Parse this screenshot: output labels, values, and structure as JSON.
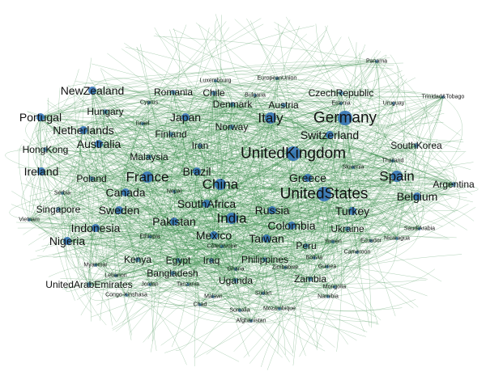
{
  "colors": {
    "background": "#ffffff",
    "edge": "#2e8540",
    "node": "#2d6fb6",
    "label": "#111111"
  },
  "nodes": [
    {
      "id": "united-kingdom",
      "label": "UnitedKingdom",
      "weight": 5
    },
    {
      "id": "united-states",
      "label": "UnitedStates",
      "weight": 5
    },
    {
      "id": "germany",
      "label": "Germany",
      "weight": 5
    },
    {
      "id": "china",
      "label": "China",
      "weight": 4
    },
    {
      "id": "india",
      "label": "India",
      "weight": 4
    },
    {
      "id": "italy",
      "label": "Italy",
      "weight": 4
    },
    {
      "id": "france",
      "label": "France",
      "weight": 4
    },
    {
      "id": "spain",
      "label": "Spain",
      "weight": 4
    },
    {
      "id": "canada",
      "label": "Canada",
      "weight": 3
    },
    {
      "id": "australia",
      "label": "Australia",
      "weight": 3
    },
    {
      "id": "south-africa",
      "label": "SouthAfrica",
      "weight": 3
    },
    {
      "id": "brazil",
      "label": "Brazil",
      "weight": 3
    },
    {
      "id": "japan",
      "label": "Japan",
      "weight": 3
    },
    {
      "id": "sweden",
      "label": "Sweden",
      "weight": 3
    },
    {
      "id": "netherlands",
      "label": "Netherlands",
      "weight": 3
    },
    {
      "id": "switzerland",
      "label": "Switzerland",
      "weight": 3
    },
    {
      "id": "ireland",
      "label": "Ireland",
      "weight": 3
    },
    {
      "id": "pakistan",
      "label": "Pakistan",
      "weight": 3
    },
    {
      "id": "mexico",
      "label": "Mexico",
      "weight": 3
    },
    {
      "id": "greece",
      "label": "Greece",
      "weight": 3
    },
    {
      "id": "turkey",
      "label": "Turkey",
      "weight": 3
    },
    {
      "id": "russia",
      "label": "Russia",
      "weight": 3
    },
    {
      "id": "colombia",
      "label": "Colombia",
      "weight": 3
    },
    {
      "id": "taiwan",
      "label": "Taiwan",
      "weight": 3
    },
    {
      "id": "nigeria",
      "label": "Nigeria",
      "weight": 3
    },
    {
      "id": "indonesia",
      "label": "Indonesia",
      "weight": 3
    },
    {
      "id": "new-zealand",
      "label": "NewZealand",
      "weight": 3
    },
    {
      "id": "portugal",
      "label": "Portugal",
      "weight": 3
    },
    {
      "id": "belgium",
      "label": "Belgium",
      "weight": 3
    },
    {
      "id": "south-korea",
      "label": "SouthKorea",
      "weight": 2
    },
    {
      "id": "argentina",
      "label": "Argentina",
      "weight": 2
    },
    {
      "id": "poland",
      "label": "Poland",
      "weight": 2
    },
    {
      "id": "egypt",
      "label": "Egypt",
      "weight": 2
    },
    {
      "id": "kenya",
      "label": "Kenya",
      "weight": 2
    },
    {
      "id": "iraq",
      "label": "Iraq",
      "weight": 2
    },
    {
      "id": "bangladesh",
      "label": "Bangladesh",
      "weight": 2
    },
    {
      "id": "philippines",
      "label": "Philippines",
      "weight": 2
    },
    {
      "id": "ukraine",
      "label": "Ukraine",
      "weight": 2
    },
    {
      "id": "peru",
      "label": "Peru",
      "weight": 2
    },
    {
      "id": "uganda",
      "label": "Uganda",
      "weight": 2
    },
    {
      "id": "zambia",
      "label": "Zambia",
      "weight": 2
    },
    {
      "id": "malaysia",
      "label": "Malaysia",
      "weight": 2
    },
    {
      "id": "finland",
      "label": "Finland",
      "weight": 2
    },
    {
      "id": "iran",
      "label": "Iran",
      "weight": 2
    },
    {
      "id": "norway",
      "label": "Norway",
      "weight": 2
    },
    {
      "id": "denmark",
      "label": "Denmark",
      "weight": 2
    },
    {
      "id": "austria",
      "label": "Austria",
      "weight": 2
    },
    {
      "id": "romania",
      "label": "Romania",
      "weight": 2
    },
    {
      "id": "czech-republic",
      "label": "CzechRepublic",
      "weight": 2
    },
    {
      "id": "hungary",
      "label": "Hungary",
      "weight": 2
    },
    {
      "id": "singapore",
      "label": "Singapore",
      "weight": 2
    },
    {
      "id": "hong-kong",
      "label": "HongKong",
      "weight": 2
    },
    {
      "id": "united-arab-emirates",
      "label": "UnitedArabEmirates",
      "weight": 2
    },
    {
      "id": "chile",
      "label": "Chile",
      "weight": 2
    },
    {
      "id": "saudi-arabia",
      "label": "SaudiArabia",
      "weight": 1
    },
    {
      "id": "thailand",
      "label": "Thailand",
      "weight": 1
    },
    {
      "id": "zimbabwe",
      "label": "Zimbabwe",
      "weight": 1
    },
    {
      "id": "ghana",
      "label": "Ghana",
      "weight": 1
    },
    {
      "id": "cote-divoire",
      "label": "CôteDIvoire",
      "weight": 1
    },
    {
      "id": "ethiopia",
      "label": "Ethiopia",
      "weight": 1
    },
    {
      "id": "jordan",
      "label": "Jordan",
      "weight": 1
    },
    {
      "id": "tanzania",
      "label": "Tanzania",
      "weight": 1
    },
    {
      "id": "myanmar",
      "label": "Myanmar",
      "weight": 1
    },
    {
      "id": "luxembourg",
      "label": "Luxembourg",
      "weight": 1
    },
    {
      "id": "cyprus",
      "label": "Cyprus",
      "weight": 1
    },
    {
      "id": "israel",
      "label": "Israel",
      "weight": 1
    },
    {
      "id": "nepal",
      "label": "Nepal",
      "weight": 1
    },
    {
      "id": "yemen",
      "label": "Yemen",
      "weight": 1
    },
    {
      "id": "cameroon",
      "label": "Cameroon",
      "weight": 1
    },
    {
      "id": "vietnam",
      "label": "Vietnam",
      "weight": 1
    },
    {
      "id": "serbia",
      "label": "Serbia",
      "weight": 1
    },
    {
      "id": "lebanon",
      "label": "Lebanon",
      "weight": 1
    },
    {
      "id": "congo-kinshasa",
      "label": "Congo-Kinshasa",
      "weight": 1
    },
    {
      "id": "trinidad-tobago",
      "label": "Trinidad&Tobago",
      "weight": 1
    },
    {
      "id": "panama",
      "label": "Panama",
      "weight": 1
    },
    {
      "id": "european-union",
      "label": "EuropeanUnion",
      "weight": 1
    },
    {
      "id": "bulgaria",
      "label": "Bulgaria",
      "weight": 1
    },
    {
      "id": "estonia",
      "label": "Estonia",
      "weight": 1
    },
    {
      "id": "uruguay",
      "label": "Uruguay",
      "weight": 1
    },
    {
      "id": "slovenia",
      "label": "Slovenia",
      "weight": 1
    },
    {
      "id": "ecuador",
      "label": "Ecuador",
      "weight": 1
    },
    {
      "id": "bolivia",
      "label": "Bolivia",
      "weight": 1
    },
    {
      "id": "mongolia",
      "label": "Mongolia",
      "weight": 1
    },
    {
      "id": "guinea",
      "label": "Guinea",
      "weight": 1
    },
    {
      "id": "nicaragua",
      "label": "Nicaragua",
      "weight": 1
    },
    {
      "id": "malawi",
      "label": "Malawi",
      "weight": 1
    },
    {
      "id": "sudan",
      "label": "Sudan",
      "weight": 1
    },
    {
      "id": "somalia",
      "label": "Somalia",
      "weight": 1
    },
    {
      "id": "afghanistan",
      "label": "Afghanistan",
      "weight": 1
    },
    {
      "id": "chad",
      "label": "Chad",
      "weight": 1
    },
    {
      "id": "mozambique",
      "label": "Mozambique",
      "weight": 1
    },
    {
      "id": "namibia",
      "label": "Namibia",
      "weight": 1
    }
  ]
}
